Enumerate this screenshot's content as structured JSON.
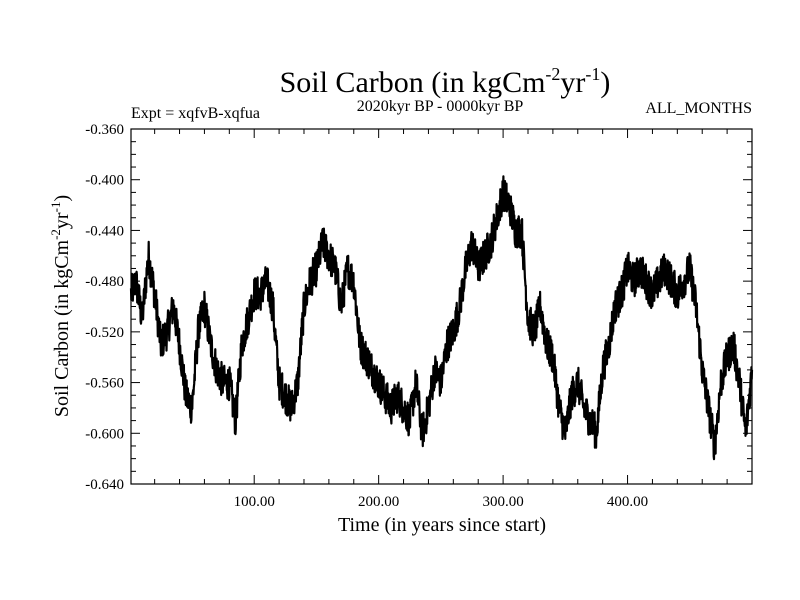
{
  "chart_data": {
    "type": "line",
    "title": "Soil Carbon (in kgCm",
    "title_sup1": "-2",
    "title_mid": "yr",
    "title_sup2": "-1",
    "title_end": ")",
    "subtitle_left": "Expt = xqfvB-xqfua",
    "subtitle_center": "2020kyr BP - 0000kyr BP",
    "subtitle_right": "ALL_MONTHS",
    "xlabel": "Time (in years since start)",
    "ylabel": {
      "pre": "Soil Carbon (in kgCm",
      "sup1": "-2",
      "mid": "yr",
      "sup2": "-1",
      "end": ")"
    },
    "xlim": [
      1,
      500
    ],
    "ylim": [
      -0.64,
      -0.36
    ],
    "xticks": [
      100,
      200,
      300,
      400
    ],
    "xtick_labels": [
      "100.00",
      "200.00",
      "300.00",
      "400.00"
    ],
    "yticks": [
      -0.36,
      -0.4,
      -0.44,
      -0.48,
      -0.52,
      -0.56,
      -0.6,
      -0.64
    ],
    "ytick_labels": [
      "-0.360",
      "-0.400",
      "-0.440",
      "-0.480",
      "-0.520",
      "-0.560",
      "-0.600",
      "-0.640"
    ],
    "series": [
      {
        "name": "Soil Carbon",
        "x": [
          1,
          5,
          10,
          15,
          20,
          25,
          30,
          35,
          40,
          45,
          50,
          55,
          60,
          65,
          70,
          75,
          80,
          85,
          90,
          95,
          100,
          105,
          110,
          115,
          120,
          125,
          130,
          135,
          140,
          145,
          150,
          155,
          160,
          165,
          170,
          175,
          180,
          185,
          190,
          195,
          200,
          205,
          210,
          215,
          220,
          225,
          230,
          235,
          240,
          245,
          250,
          255,
          260,
          265,
          270,
          275,
          280,
          285,
          290,
          295,
          300,
          305,
          310,
          315,
          320,
          325,
          330,
          335,
          340,
          345,
          350,
          355,
          360,
          365,
          370,
          375,
          380,
          385,
          390,
          395,
          400,
          405,
          410,
          415,
          420,
          425,
          430,
          435,
          440,
          445,
          450,
          455,
          460,
          465,
          470,
          475,
          480,
          485,
          490,
          495,
          500
        ],
        "values": [
          -0.49,
          -0.48,
          -0.51,
          -0.46,
          -0.49,
          -0.53,
          -0.52,
          -0.5,
          -0.53,
          -0.57,
          -0.58,
          -0.52,
          -0.5,
          -0.53,
          -0.55,
          -0.56,
          -0.56,
          -0.59,
          -0.53,
          -0.51,
          -0.49,
          -0.49,
          -0.48,
          -0.5,
          -0.56,
          -0.57,
          -0.58,
          -0.56,
          -0.5,
          -0.48,
          -0.47,
          -0.45,
          -0.46,
          -0.47,
          -0.5,
          -0.47,
          -0.48,
          -0.53,
          -0.54,
          -0.55,
          -0.56,
          -0.57,
          -0.58,
          -0.57,
          -0.58,
          -0.59,
          -0.56,
          -0.6,
          -0.58,
          -0.55,
          -0.56,
          -0.53,
          -0.52,
          -0.5,
          -0.47,
          -0.45,
          -0.47,
          -0.46,
          -0.45,
          -0.43,
          -0.41,
          -0.42,
          -0.44,
          -0.44,
          -0.51,
          -0.52,
          -0.5,
          -0.53,
          -0.54,
          -0.58,
          -0.6,
          -0.57,
          -0.56,
          -0.58,
          -0.59,
          -0.6,
          -0.55,
          -0.53,
          -0.5,
          -0.49,
          -0.47,
          -0.48,
          -0.47,
          -0.48,
          -0.49,
          -0.48,
          -0.47,
          -0.48,
          -0.49,
          -0.48,
          -0.47,
          -0.5,
          -0.55,
          -0.58,
          -0.61,
          -0.56,
          -0.54,
          -0.53,
          -0.56,
          -0.6,
          -0.55
        ]
      }
    ]
  }
}
